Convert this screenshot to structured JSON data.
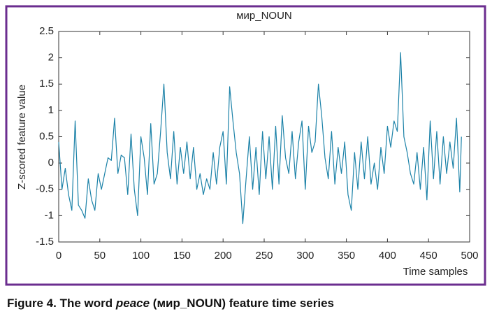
{
  "chart_data": {
    "type": "line",
    "title": "мир_NOUN",
    "xlabel": "Time samples",
    "ylabel": "Z-scored feature value",
    "caption": {
      "prefix": "Figure 4. The word ",
      "italic": "peace",
      "suffix": " (мир_NOUN) feature time series"
    },
    "xlim": [
      0,
      500
    ],
    "xticks": [
      0,
      50,
      100,
      150,
      200,
      250,
      300,
      350,
      400,
      450,
      500
    ],
    "ylim": [
      -1.5,
      2.5
    ],
    "yticks": [
      -1.5,
      -1,
      -0.5,
      0,
      0.5,
      1,
      1.5,
      2,
      2.5
    ],
    "color": "#1c82a8",
    "x": [
      0,
      4,
      8,
      12,
      16,
      20,
      24,
      28,
      32,
      36,
      40,
      44,
      48,
      52,
      56,
      60,
      64,
      68,
      72,
      76,
      80,
      84,
      88,
      92,
      96,
      100,
      104,
      108,
      112,
      116,
      120,
      124,
      128,
      132,
      136,
      140,
      144,
      148,
      152,
      156,
      160,
      164,
      168,
      172,
      176,
      180,
      184,
      188,
      192,
      196,
      200,
      204,
      208,
      212,
      216,
      220,
      224,
      228,
      232,
      236,
      240,
      244,
      248,
      252,
      256,
      260,
      264,
      268,
      272,
      276,
      280,
      284,
      288,
      292,
      296,
      300,
      304,
      308,
      312,
      316,
      320,
      324,
      328,
      332,
      336,
      340,
      344,
      348,
      352,
      356,
      360,
      364,
      368,
      372,
      376,
      380,
      384,
      388,
      392,
      396,
      400,
      404,
      408,
      412,
      416,
      420,
      424,
      428,
      432,
      436,
      440,
      444,
      448,
      452,
      456,
      460,
      464,
      468,
      472,
      476,
      480,
      484,
      488,
      490
    ],
    "values": [
      0.4,
      -0.5,
      -0.1,
      -0.6,
      -0.9,
      0.8,
      -0.8,
      -0.9,
      -1.05,
      -0.3,
      -0.7,
      -0.9,
      -0.2,
      -0.5,
      -0.2,
      0.1,
      0.05,
      0.85,
      -0.2,
      0.15,
      0.1,
      -0.6,
      0.55,
      -0.5,
      -1.0,
      0.5,
      0.1,
      -0.6,
      0.75,
      -0.4,
      -0.2,
      0.6,
      1.5,
      0.2,
      -0.3,
      0.6,
      -0.4,
      0.3,
      -0.2,
      0.4,
      -0.3,
      0.3,
      -0.5,
      -0.2,
      -0.6,
      -0.3,
      -0.5,
      0.2,
      -0.4,
      0.3,
      0.6,
      -0.4,
      1.45,
      0.8,
      0.2,
      -0.2,
      -1.15,
      -0.3,
      0.5,
      -0.5,
      0.3,
      -0.6,
      0.6,
      -0.3,
      0.5,
      -0.5,
      0.7,
      -0.4,
      0.9,
      0.1,
      -0.2,
      0.6,
      -0.3,
      0.4,
      0.8,
      -0.5,
      0.7,
      0.2,
      0.4,
      1.5,
      0.9,
      0.1,
      -0.3,
      0.6,
      -0.4,
      0.3,
      -0.2,
      0.4,
      -0.6,
      -0.9,
      0.2,
      -0.5,
      0.4,
      -0.3,
      0.5,
      -0.4,
      0.0,
      -0.5,
      0.3,
      -0.2,
      0.7,
      0.3,
      0.8,
      0.6,
      2.1,
      0.5,
      0.2,
      -0.2,
      -0.4,
      0.2,
      -0.5,
      0.3,
      -0.7,
      0.8,
      -0.3,
      0.6,
      -0.4,
      0.5,
      -0.2,
      0.4,
      -0.1,
      0.85,
      -0.55,
      0.5
    ]
  }
}
